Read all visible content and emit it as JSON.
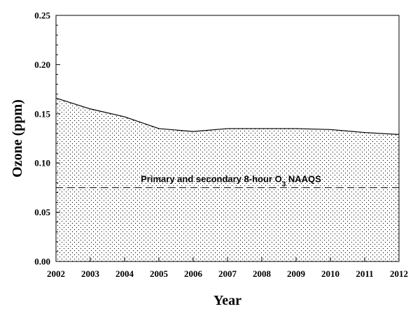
{
  "chart_data": {
    "type": "area",
    "title": "",
    "xlabel": "Year",
    "ylabel": "Ozone (ppm)",
    "x": [
      2002,
      2003,
      2004,
      2005,
      2006,
      2007,
      2008,
      2009,
      2010,
      2011,
      2012
    ],
    "series": [
      {
        "values": [
          0.166,
          0.155,
          0.147,
          0.135,
          0.132,
          0.135,
          0.135,
          0.135,
          0.134,
          0.131,
          0.129
        ],
        "fill": "dotted",
        "color": "#000000"
      }
    ],
    "xlim": [
      2002,
      2012
    ],
    "ylim": [
      0.0,
      0.25
    ],
    "x_ticks": [
      "2002",
      "2003",
      "2004",
      "2005",
      "2006",
      "2007",
      "2008",
      "2009",
      "2010",
      "2011",
      "2012"
    ],
    "y_ticks": [
      "0.00",
      "0.05",
      "0.10",
      "0.15",
      "0.20",
      "0.25"
    ],
    "y_tick_values": [
      0.0,
      0.05,
      0.1,
      0.15,
      0.2,
      0.25
    ],
    "y_minor_step": 0.01,
    "grid": false,
    "reference_line": {
      "value": 0.075,
      "style": "dashed",
      "label_prefix": "Primary and secondary 8-hour O",
      "label_subscript": "3",
      "label_suffix": " NAAQS"
    }
  }
}
